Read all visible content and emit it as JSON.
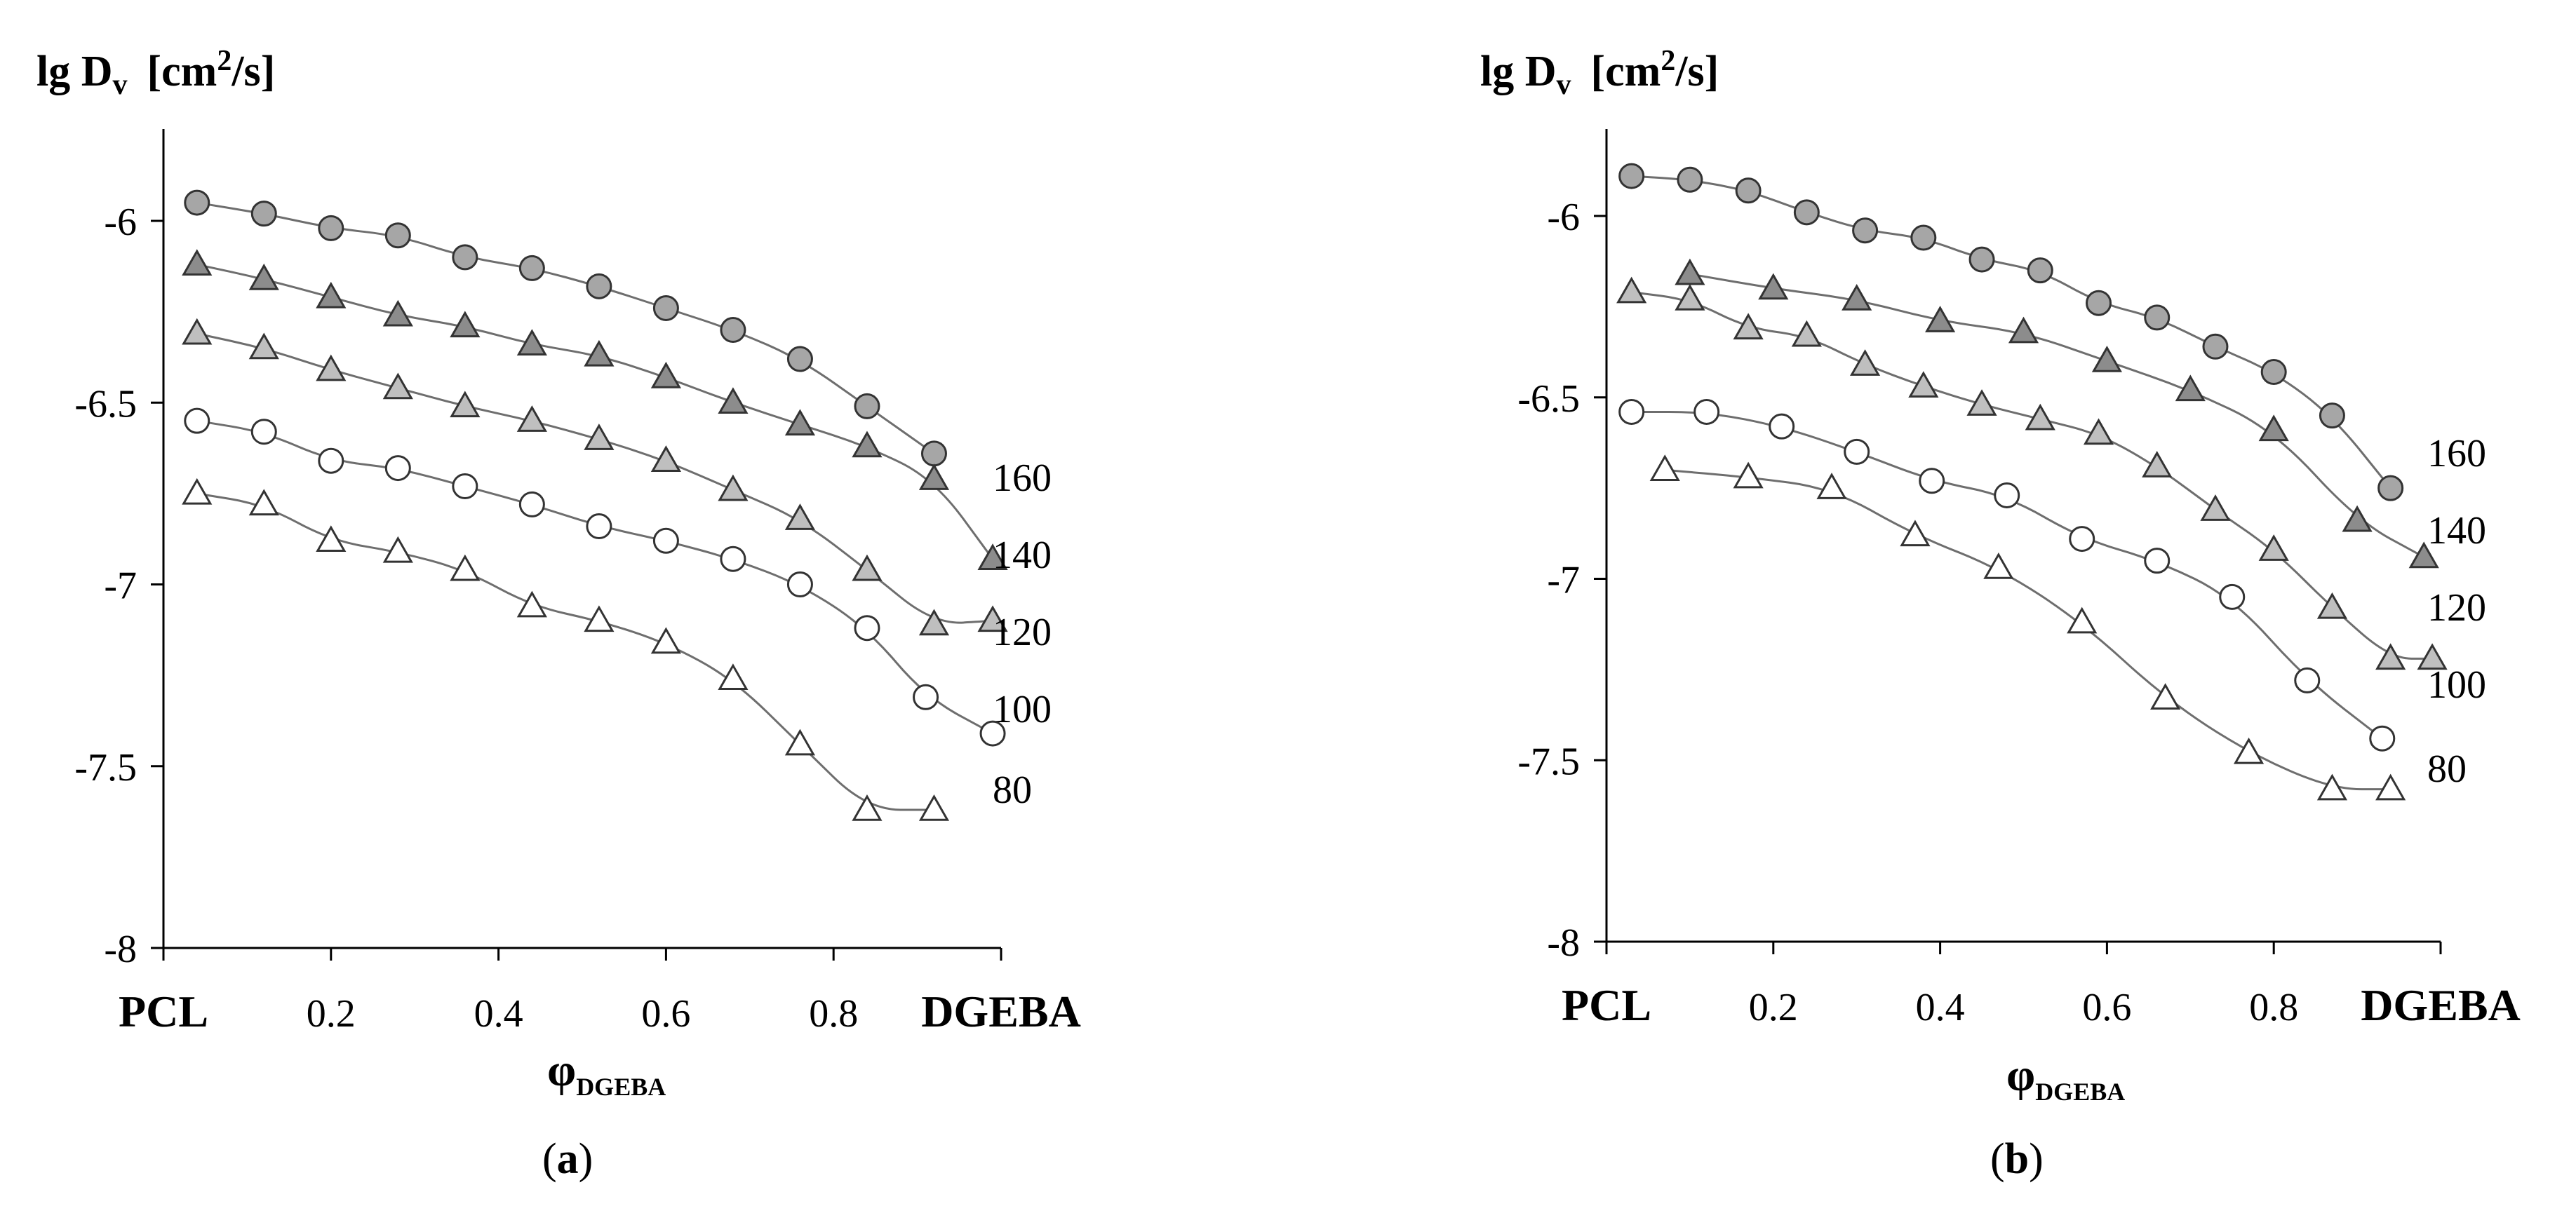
{
  "figure": {
    "captions": [
      "a",
      "b"
    ]
  },
  "chart_data": [
    {
      "type": "scatter",
      "panel": "a",
      "ylabel_main": "lg D",
      "ylabel_sub": "v",
      "ylabel_unit": "[cm",
      "ylabel_sup": "2",
      "ylabel_end": "/s]",
      "xlabel_main": "φ",
      "xlabel_sub": "DGEBA",
      "xlim": [
        0,
        1
      ],
      "ylim": [
        -8,
        -5.75
      ],
      "x_ticks": [
        {
          "value": 0.0,
          "label": "PCL"
        },
        {
          "value": 0.2,
          "label": "0.2"
        },
        {
          "value": 0.4,
          "label": "0.4"
        },
        {
          "value": 0.6,
          "label": "0.6"
        },
        {
          "value": 0.8,
          "label": "0.8"
        },
        {
          "value": 1.0,
          "label": "DGEBA"
        }
      ],
      "y_ticks": [
        {
          "value": -6,
          "label": "-6"
        },
        {
          "value": -6.5,
          "label": "-6.5"
        },
        {
          "value": -7,
          "label": "-7"
        },
        {
          "value": -7.5,
          "label": "-7.5"
        },
        {
          "value": -8,
          "label": "-8"
        }
      ],
      "series": [
        {
          "name": "160",
          "marker": "circle",
          "fill": "#a6a6a6",
          "x": [
            0.04,
            0.12,
            0.2,
            0.28,
            0.36,
            0.44,
            0.52,
            0.6,
            0.68,
            0.76,
            0.84,
            0.92
          ],
          "y": [
            -5.95,
            -5.98,
            -6.02,
            -6.04,
            -6.1,
            -6.13,
            -6.18,
            -6.24,
            -6.3,
            -6.38,
            -6.51,
            -6.64
          ]
        },
        {
          "name": "140",
          "marker": "triangle",
          "fill": "#8c8c8c",
          "x": [
            0.04,
            0.12,
            0.2,
            0.28,
            0.36,
            0.44,
            0.52,
            0.6,
            0.68,
            0.76,
            0.84,
            0.92,
            0.99
          ],
          "y": [
            -6.12,
            -6.16,
            -6.21,
            -6.26,
            -6.29,
            -6.34,
            -6.37,
            -6.43,
            -6.5,
            -6.56,
            -6.62,
            -6.71,
            -6.93
          ]
        },
        {
          "name": "120",
          "marker": "triangle",
          "fill": "#bfbfbf",
          "x": [
            0.04,
            0.12,
            0.2,
            0.28,
            0.36,
            0.44,
            0.52,
            0.6,
            0.68,
            0.76,
            0.84,
            0.92,
            0.99
          ],
          "y": [
            -6.31,
            -6.35,
            -6.41,
            -6.46,
            -6.51,
            -6.55,
            -6.6,
            -6.66,
            -6.74,
            -6.82,
            -6.96,
            -7.11,
            -7.1
          ]
        },
        {
          "name": "100",
          "marker": "circle",
          "fill": "#ffffff",
          "x": [
            0.04,
            0.12,
            0.2,
            0.28,
            0.36,
            0.44,
            0.52,
            0.6,
            0.68,
            0.76,
            0.84,
            0.91,
            0.99
          ],
          "y": [
            -6.55,
            -6.58,
            -6.66,
            -6.68,
            -6.73,
            -6.78,
            -6.84,
            -6.88,
            -6.93,
            -7.0,
            -7.12,
            -7.31,
            -7.41
          ]
        },
        {
          "name": "80",
          "marker": "triangle",
          "fill": "#ffffff",
          "x": [
            0.04,
            0.12,
            0.2,
            0.28,
            0.36,
            0.44,
            0.52,
            0.6,
            0.68,
            0.76,
            0.84,
            0.92
          ],
          "y": [
            -6.75,
            -6.78,
            -6.88,
            -6.91,
            -6.96,
            -7.06,
            -7.1,
            -7.16,
            -7.26,
            -7.44,
            -7.62,
            -7.62
          ]
        }
      ],
      "curve_labels": [
        "160",
        "140",
        "120",
        "100",
        "80"
      ]
    },
    {
      "type": "scatter",
      "panel": "b",
      "ylabel_main": "lg D",
      "ylabel_sub": "v",
      "ylabel_unit": "[cm",
      "ylabel_sup": "2",
      "ylabel_end": "/s]",
      "xlabel_main": "φ",
      "xlabel_sub": "DGEBA",
      "xlim": [
        0,
        1
      ],
      "ylim": [
        -8,
        -5.75
      ],
      "x_ticks": [
        {
          "value": 0.0,
          "label": "PCL"
        },
        {
          "value": 0.2,
          "label": "0.2"
        },
        {
          "value": 0.4,
          "label": "0.4"
        },
        {
          "value": 0.6,
          "label": "0.6"
        },
        {
          "value": 0.8,
          "label": "0.8"
        },
        {
          "value": 1.0,
          "label": "DGEBA"
        }
      ],
      "y_ticks": [
        {
          "value": -6,
          "label": "-6"
        },
        {
          "value": -6.5,
          "label": "-6.5"
        },
        {
          "value": -7,
          "label": "-7"
        },
        {
          "value": -7.5,
          "label": "-7.5"
        },
        {
          "value": -8,
          "label": "-8"
        }
      ],
      "series": [
        {
          "name": "160",
          "marker": "circle",
          "fill": "#a6a6a6",
          "x": [
            0.03,
            0.1,
            0.17,
            0.24,
            0.31,
            0.38,
            0.45,
            0.52,
            0.59,
            0.66,
            0.73,
            0.8,
            0.87,
            0.94
          ],
          "y": [
            -5.89,
            -5.9,
            -5.93,
            -5.99,
            -6.04,
            -6.06,
            -6.12,
            -6.15,
            -6.24,
            -6.28,
            -6.36,
            -6.43,
            -6.55,
            -6.75
          ]
        },
        {
          "name": "140",
          "marker": "triangle",
          "fill": "#8c8c8c",
          "x": [
            0.1,
            0.2,
            0.3,
            0.4,
            0.5,
            0.6,
            0.7,
            0.8,
            0.9,
            0.98
          ],
          "y": [
            -6.16,
            -6.2,
            -6.23,
            -6.29,
            -6.32,
            -6.4,
            -6.48,
            -6.59,
            -6.84,
            -6.94
          ]
        },
        {
          "name": "120",
          "marker": "triangle",
          "fill": "#bfbfbf",
          "x": [
            0.03,
            0.1,
            0.17,
            0.24,
            0.31,
            0.38,
            0.45,
            0.52,
            0.59,
            0.66,
            0.73,
            0.8,
            0.87,
            0.94,
            0.99
          ],
          "y": [
            -6.21,
            -6.23,
            -6.31,
            -6.33,
            -6.41,
            -6.47,
            -6.52,
            -6.56,
            -6.6,
            -6.69,
            -6.81,
            -6.92,
            -7.08,
            -7.22,
            -7.22
          ]
        },
        {
          "name": "100",
          "marker": "circle",
          "fill": "#ffffff",
          "x": [
            0.03,
            0.12,
            0.21,
            0.3,
            0.39,
            0.48,
            0.57,
            0.66,
            0.75,
            0.84,
            0.93
          ],
          "y": [
            -6.54,
            -6.54,
            -6.58,
            -6.65,
            -6.73,
            -6.77,
            -6.89,
            -6.95,
            -7.05,
            -7.28,
            -7.44
          ]
        },
        {
          "name": "80",
          "marker": "triangle",
          "fill": "#ffffff",
          "x": [
            0.07,
            0.17,
            0.27,
            0.37,
            0.47,
            0.57,
            0.67,
            0.77,
            0.87,
            0.94
          ],
          "y": [
            -6.7,
            -6.72,
            -6.75,
            -6.88,
            -6.97,
            -7.12,
            -7.33,
            -7.48,
            -7.58,
            -7.58
          ]
        }
      ],
      "curve_labels": [
        "160",
        "140",
        "120",
        "100",
        "80"
      ]
    }
  ]
}
